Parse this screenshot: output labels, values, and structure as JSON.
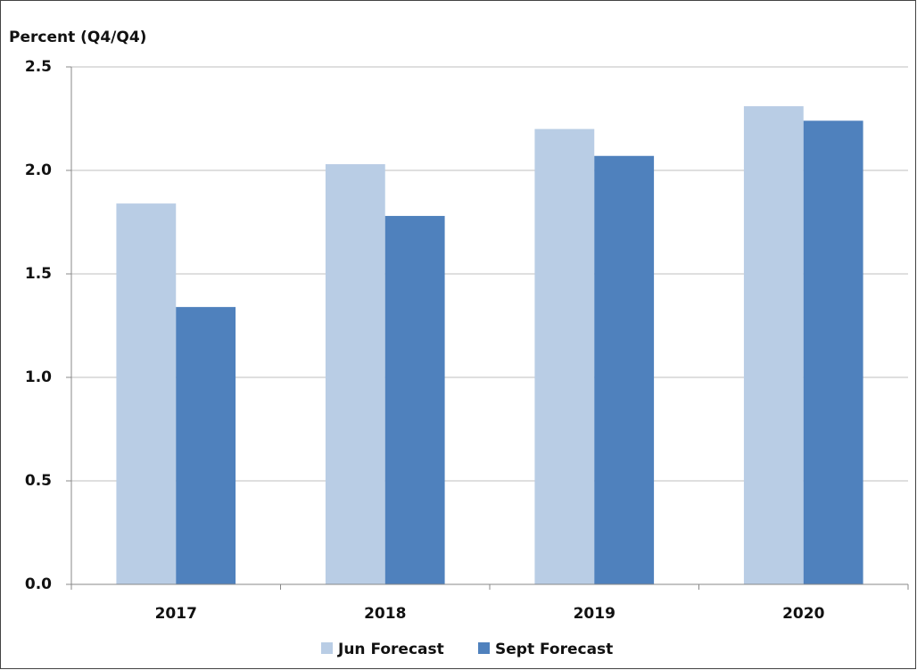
{
  "chart_data": {
    "type": "bar",
    "ylabel": "Percent (Q4/Q4)",
    "categories": [
      "2017",
      "2018",
      "2019",
      "2020"
    ],
    "series": [
      {
        "name": "Jun Forecast",
        "color": "#b9cde5",
        "values": [
          1.84,
          2.03,
          2.2,
          2.31
        ]
      },
      {
        "name": "Sept Forecast",
        "color": "#4f81bd",
        "values": [
          1.34,
          1.78,
          2.07,
          2.24
        ]
      }
    ],
    "ylim": [
      0,
      2.5
    ],
    "yticks": [
      {
        "value": 0,
        "label": "0.0"
      },
      0.5,
      {
        "value": 1,
        "label": "1.0"
      },
      1.5,
      {
        "value": 2,
        "label": "2.0"
      },
      2.5
    ],
    "grid": true,
    "legend": "bottom"
  }
}
